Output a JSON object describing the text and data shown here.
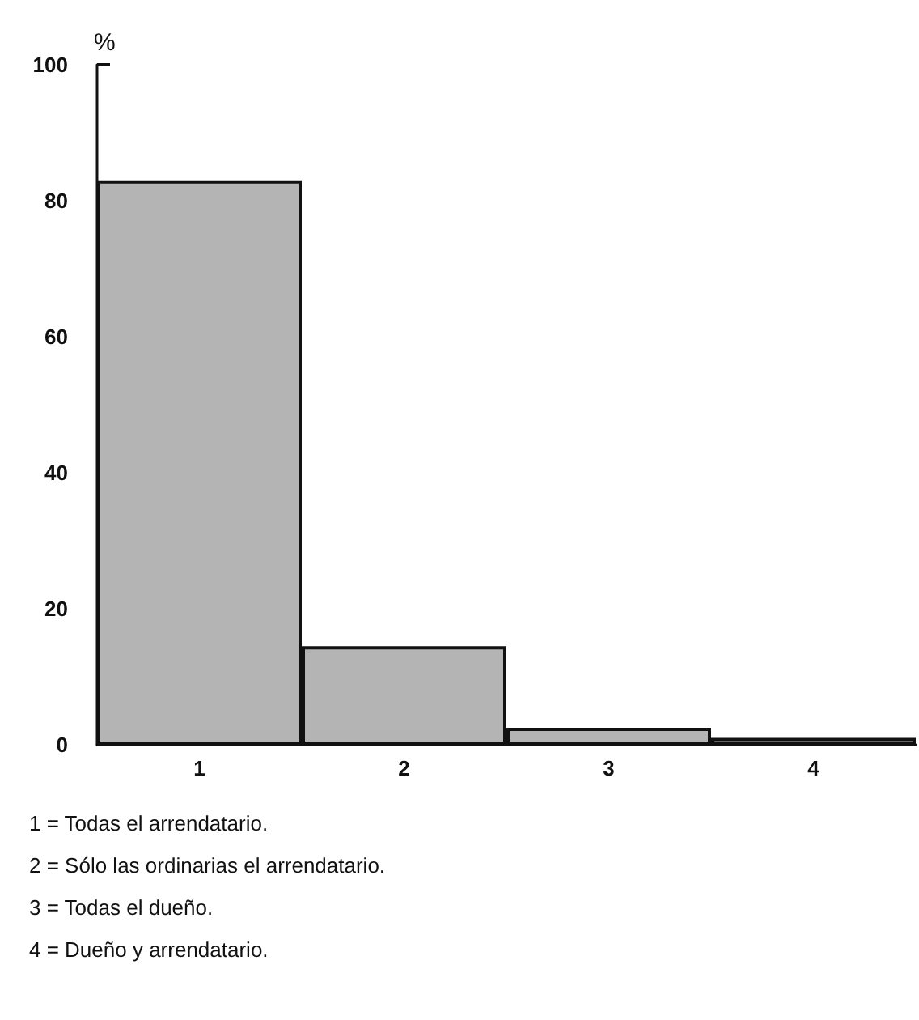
{
  "chart_data": {
    "type": "bar",
    "ylabel": "%",
    "categories": [
      "1",
      "2",
      "3",
      "4"
    ],
    "values": [
      83,
      14.5,
      2.5,
      1
    ],
    "color": "#b4b4b4",
    "ylim": [
      0,
      100
    ],
    "yticks": [
      0,
      20,
      40,
      60,
      80,
      100
    ],
    "grid": false,
    "annotations": [
      "1 = Todas el arrendatario.",
      "2 = Sólo las ordinarias el arrendatario.",
      "3 = Todas el dueño.",
      "4 = Dueño y arrendatario."
    ]
  }
}
